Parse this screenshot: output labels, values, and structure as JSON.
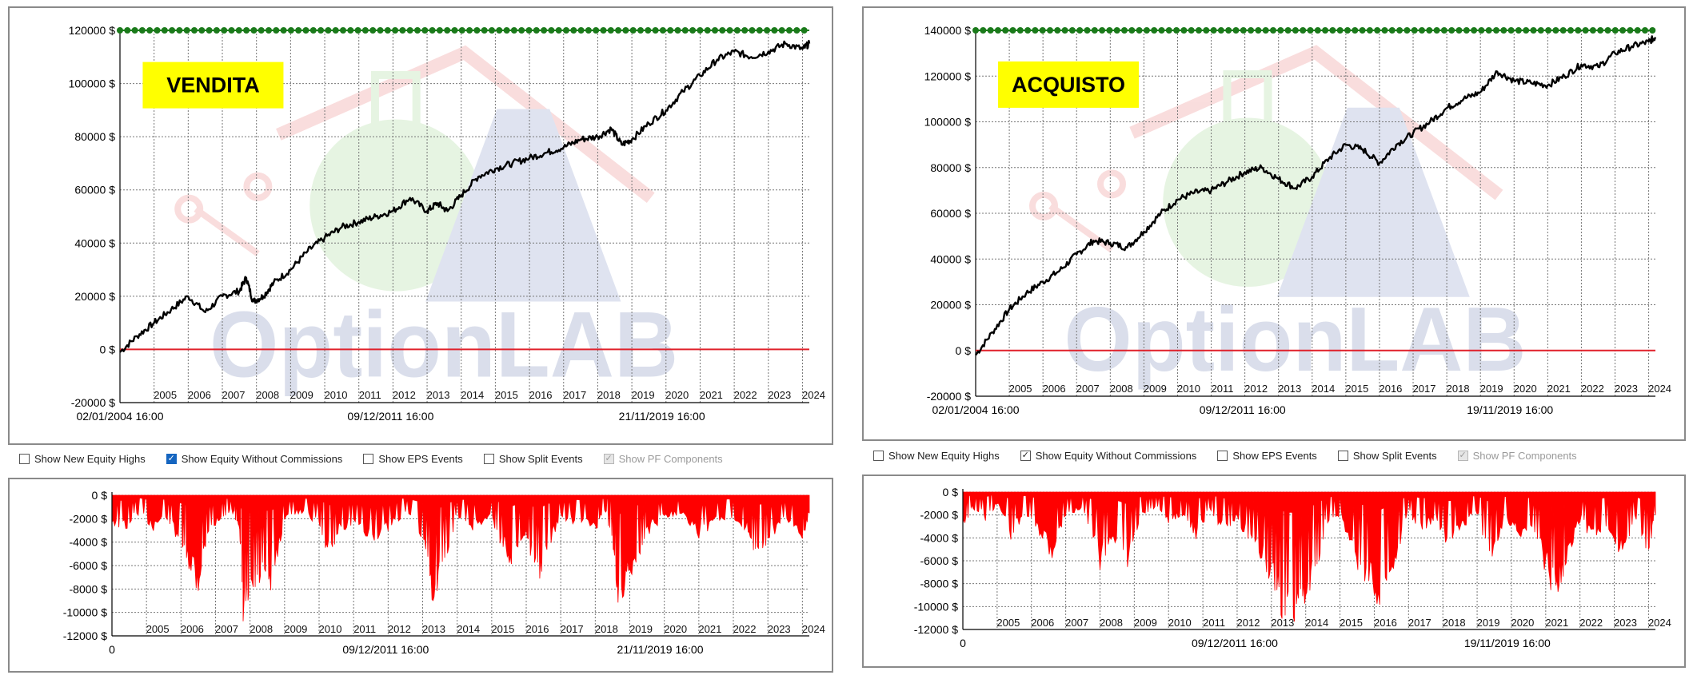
{
  "panels": [
    {
      "badge": "VENDITA",
      "chart_data": [
        {
          "type": "line",
          "role": "equity",
          "ylim": [
            -20000,
            120000
          ],
          "yticks": [
            -20000,
            0,
            20000,
            40000,
            60000,
            80000,
            100000,
            120000
          ],
          "ytick_labels": [
            "-20000 $",
            "0 $",
            "20000 $",
            "40000 $",
            "60000 $",
            "80000 $",
            "100000 $",
            "120000 $"
          ],
          "year_labels": [
            "2005",
            "2006",
            "2007",
            "2008",
            "2009",
            "2010",
            "2011",
            "2012",
            "2013",
            "2014",
            "2015",
            "2016",
            "2017",
            "2018",
            "2019",
            "2020",
            "2021",
            "2022",
            "2023",
            "2024"
          ],
          "date_labels": [
            "02/01/2004 16:00",
            "09/12/2011 16:00",
            "21/11/2019 16:00"
          ],
          "x": [
            2004.0,
            2004.5,
            2005.0,
            2005.5,
            2006.0,
            2006.5,
            2007.0,
            2007.5,
            2007.7,
            2007.9,
            2008.2,
            2008.5,
            2009.0,
            2009.5,
            2010.0,
            2010.5,
            2011.0,
            2011.5,
            2012.0,
            2012.5,
            2013.0,
            2013.3,
            2013.6,
            2014.0,
            2014.5,
            2015.0,
            2015.5,
            2016.0,
            2016.5,
            2017.0,
            2017.5,
            2018.0,
            2018.4,
            2018.7,
            2019.0,
            2019.5,
            2020.0,
            2020.5,
            2021.0,
            2021.5,
            2022.0,
            2022.5,
            2023.0,
            2023.5,
            2024.0,
            2024.2
          ],
          "values": [
            -1000,
            5000,
            10000,
            15000,
            20000,
            14000,
            20000,
            22000,
            27000,
            18000,
            20000,
            25000,
            30000,
            37000,
            42000,
            46000,
            48000,
            50000,
            52000,
            57000,
            52000,
            55000,
            52000,
            58000,
            65000,
            68000,
            70000,
            72000,
            74000,
            76000,
            79000,
            80000,
            83000,
            77000,
            79000,
            85000,
            90000,
            97000,
            103000,
            109000,
            112000,
            110000,
            112000,
            115000,
            113000,
            115000
          ],
          "highs_line_value": 120000,
          "zero_line_value": 0,
          "colors": {
            "equity": "#000000",
            "zero": "#e0202a",
            "highs": "#1a7a1a"
          }
        },
        {
          "type": "area",
          "role": "drawdown",
          "ylim": [
            -12000,
            0
          ],
          "yticks": [
            0,
            -2000,
            -4000,
            -6000,
            -8000,
            -10000,
            -12000
          ],
          "ytick_labels": [
            "0 $",
            "-2000 $",
            "-4000 $",
            "-6000 $",
            "-8000 $",
            "-10000 $",
            "-12000 $"
          ],
          "year_labels": [
            "2005",
            "2006",
            "2007",
            "2008",
            "2009",
            "2010",
            "2011",
            "2012",
            "2013",
            "2014",
            "2015",
            "2016",
            "2017",
            "2018",
            "2019",
            "2020",
            "2021",
            "2022",
            "2023",
            "2024"
          ],
          "date_labels": [
            "0",
            "09/12/2011 16:00",
            "21/11/2019 16:00"
          ],
          "x": [
            2004.0,
            2004.4,
            2004.8,
            2005.2,
            2005.6,
            2006.0,
            2006.2,
            2006.5,
            2006.8,
            2007.2,
            2007.5,
            2007.7,
            2007.8,
            2008.0,
            2008.3,
            2008.6,
            2009.0,
            2009.5,
            2010.0,
            2010.3,
            2010.6,
            2011.0,
            2011.5,
            2012.0,
            2012.5,
            2013.0,
            2013.3,
            2013.6,
            2014.0,
            2014.5,
            2015.0,
            2015.3,
            2015.6,
            2016.0,
            2016.3,
            2016.6,
            2017.0,
            2017.5,
            2018.0,
            2018.3,
            2018.5,
            2018.7,
            2019.0,
            2019.3,
            2019.6,
            2020.0,
            2020.5,
            2021.0,
            2021.5,
            2022.0,
            2022.4,
            2022.7,
            2023.0,
            2023.5,
            2024.0,
            2024.2
          ],
          "values": [
            -2500,
            -3000,
            -1500,
            -3000,
            -2000,
            -4500,
            -6000,
            -8500,
            -3000,
            -2000,
            -1500,
            -3000,
            -11500,
            -10000,
            -8000,
            -9000,
            -2000,
            -1500,
            -2500,
            -5500,
            -3000,
            -2500,
            -4000,
            -3000,
            -1500,
            -4000,
            -9000,
            -6000,
            -2000,
            -3000,
            -2000,
            -4500,
            -6000,
            -3000,
            -8000,
            -5000,
            -2000,
            -2500,
            -3000,
            -1500,
            -4000,
            -10500,
            -7000,
            -5000,
            -3000,
            -2000,
            -1500,
            -3500,
            -2500,
            -2000,
            -3000,
            -5500,
            -4000,
            -2500,
            -4000,
            -1500
          ],
          "colors": {
            "area": "#ff0000"
          }
        }
      ]
    },
    {
      "badge": "ACQUISTO",
      "chart_data": [
        {
          "type": "line",
          "role": "equity",
          "ylim": [
            -20000,
            140000
          ],
          "yticks": [
            -20000,
            0,
            20000,
            40000,
            60000,
            80000,
            100000,
            120000,
            140000
          ],
          "ytick_labels": [
            "-20000 $",
            "0 $",
            "20000 $",
            "40000 $",
            "60000 $",
            "80000 $",
            "100000 $",
            "120000 $",
            "140000 $"
          ],
          "year_labels": [
            "2005",
            "2006",
            "2007",
            "2008",
            "2009",
            "2010",
            "2011",
            "2012",
            "2013",
            "2014",
            "2015",
            "2016",
            "2017",
            "2018",
            "2019",
            "2020",
            "2021",
            "2022",
            "2023",
            "2024"
          ],
          "date_labels": [
            "02/01/2004 16:00",
            "09/12/2011 16:00",
            "19/11/2019 16:00"
          ],
          "x": [
            2004.0,
            2004.5,
            2005.0,
            2005.5,
            2006.0,
            2006.5,
            2007.0,
            2007.5,
            2008.0,
            2008.5,
            2009.0,
            2009.5,
            2010.0,
            2010.5,
            2011.0,
            2011.5,
            2012.0,
            2012.5,
            2013.0,
            2013.5,
            2014.0,
            2014.5,
            2015.0,
            2015.5,
            2016.0,
            2016.5,
            2017.0,
            2017.5,
            2018.0,
            2018.5,
            2019.0,
            2019.5,
            2020.0,
            2020.5,
            2021.0,
            2021.5,
            2022.0,
            2022.5,
            2023.0,
            2023.5,
            2024.0,
            2024.2
          ],
          "values": [
            -2000,
            8000,
            18000,
            25000,
            30000,
            35000,
            42000,
            48000,
            47000,
            45000,
            52000,
            60000,
            66000,
            69000,
            70000,
            74000,
            78000,
            80000,
            75000,
            71000,
            76000,
            84000,
            90000,
            88000,
            82000,
            90000,
            95000,
            100000,
            106000,
            110000,
            113000,
            122000,
            118000,
            117000,
            116000,
            120000,
            125000,
            124000,
            130000,
            133000,
            135000,
            137000
          ],
          "highs_line_value": 140000,
          "zero_line_value": 0,
          "colors": {
            "equity": "#000000",
            "zero": "#e0202a",
            "highs": "#1a7a1a"
          }
        },
        {
          "type": "area",
          "role": "drawdown",
          "ylim": [
            -12000,
            0
          ],
          "yticks": [
            0,
            -2000,
            -4000,
            -6000,
            -8000,
            -10000,
            -12000
          ],
          "ytick_labels": [
            "0 $",
            "-2000 $",
            "-4000 $",
            "-6000 $",
            "-8000 $",
            "-10000 $",
            "-12000 $"
          ],
          "year_labels": [
            "2005",
            "2006",
            "2007",
            "2008",
            "2009",
            "2010",
            "2011",
            "2012",
            "2013",
            "2014",
            "2015",
            "2016",
            "2017",
            "2018",
            "2019",
            "2020",
            "2021",
            "2022",
            "2023",
            "2024"
          ],
          "date_labels": [
            "0",
            "09/12/2011 16:00",
            "19/11/2019 16:00"
          ],
          "x": [
            2004.0,
            2004.3,
            2004.7,
            2005.0,
            2005.4,
            2005.8,
            2006.2,
            2006.6,
            2007.0,
            2007.5,
            2008.0,
            2008.4,
            2008.8,
            2009.2,
            2009.6,
            2010.0,
            2010.4,
            2010.8,
            2011.2,
            2011.6,
            2012.0,
            2012.4,
            2012.8,
            2013.1,
            2013.4,
            2013.7,
            2014.0,
            2014.3,
            2014.6,
            2015.0,
            2015.4,
            2015.8,
            2016.2,
            2016.6,
            2017.0,
            2017.4,
            2017.8,
            2018.2,
            2018.6,
            2019.0,
            2019.4,
            2019.8,
            2020.2,
            2020.6,
            2021.0,
            2021.3,
            2021.6,
            2022.0,
            2022.4,
            2022.8,
            2023.2,
            2023.6,
            2024.0,
            2024.2
          ],
          "values": [
            -3000,
            -1500,
            -2500,
            -1000,
            -4000,
            -2000,
            -3500,
            -6000,
            -2000,
            -1500,
            -6500,
            -4000,
            -7000,
            -2500,
            -1500,
            -3000,
            -2000,
            -4000,
            -1500,
            -3500,
            -2500,
            -4500,
            -6500,
            -8500,
            -11500,
            -12000,
            -9000,
            -7000,
            -3000,
            -2000,
            -6000,
            -8000,
            -10000,
            -6000,
            -2000,
            -3500,
            -2500,
            -5000,
            -3000,
            -2000,
            -6000,
            -2500,
            -4000,
            -3000,
            -7000,
            -9500,
            -6000,
            -2500,
            -4500,
            -3000,
            -5500,
            -2500,
            -5500,
            -2000
          ],
          "colors": {
            "area": "#ff0000"
          }
        }
      ]
    }
  ],
  "checkboxes": [
    {
      "label": "Show New Equity Highs",
      "checked": false,
      "disabled": false
    },
    {
      "label": "Show Equity Without Commissions",
      "checked": true,
      "disabled": false
    },
    {
      "label": "Show EPS Events",
      "checked": false,
      "disabled": false
    },
    {
      "label": "Show Split Events",
      "checked": false,
      "disabled": false
    },
    {
      "label": "Show PF Components",
      "checked": true,
      "disabled": true
    }
  ],
  "watermark": "OptionLAB"
}
